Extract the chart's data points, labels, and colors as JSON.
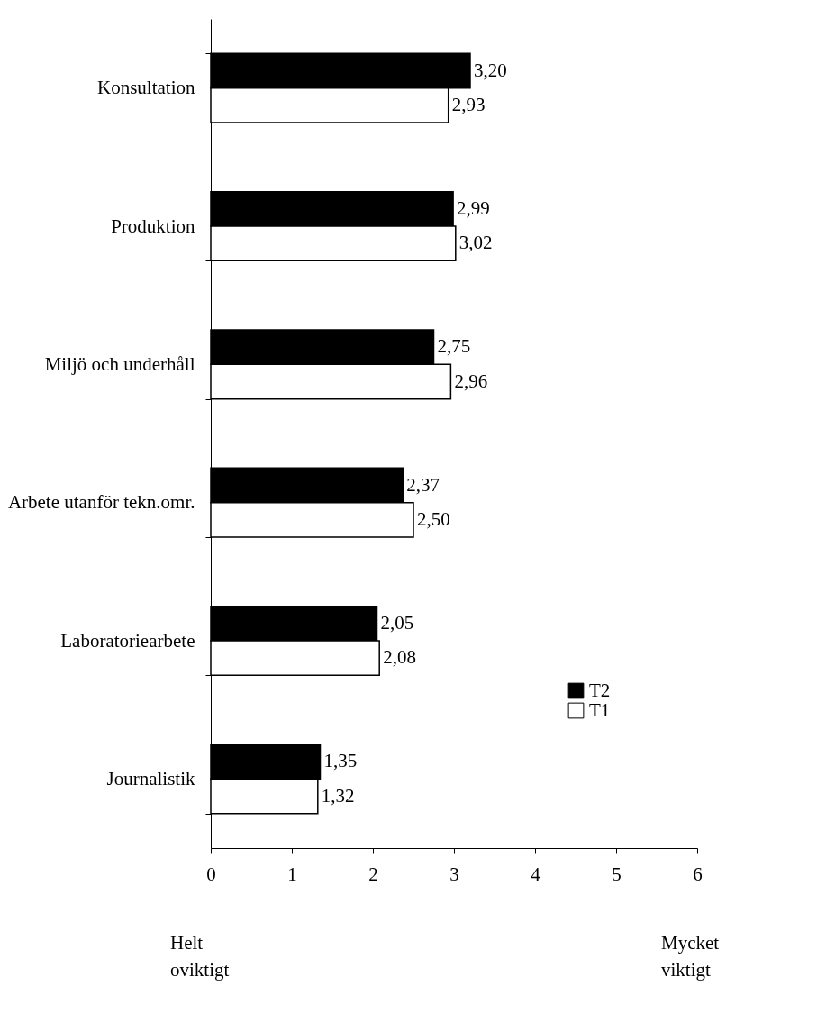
{
  "chart_data": {
    "type": "bar",
    "orientation": "horizontal",
    "categories": [
      "Konsultation",
      "Produktion",
      "Miljö och underhåll",
      "Arbete utanför tekn.omr.",
      "Laboratoriearbete",
      "Journalistik"
    ],
    "series": [
      {
        "name": "T2",
        "color": "#000000",
        "values": [
          3.2,
          2.99,
          2.75,
          2.37,
          2.05,
          1.35
        ],
        "value_labels": [
          "3,20",
          "2,99",
          "2,75",
          "2,37",
          "2,05",
          "1,35"
        ]
      },
      {
        "name": "T1",
        "color": "#ffffff",
        "values": [
          2.93,
          3.02,
          2.96,
          2.5,
          2.08,
          1.32
        ],
        "value_labels": [
          "2,93",
          "3,02",
          "2,96",
          "2,50",
          "2,08",
          "1,32"
        ]
      }
    ],
    "xlim": [
      0,
      6
    ],
    "xticks": [
      0,
      1,
      2,
      3,
      4,
      5,
      6
    ],
    "grid": false,
    "legend": "bottom right",
    "annotations": [
      "Helt oviktigt",
      "Mycket viktigt"
    ]
  }
}
